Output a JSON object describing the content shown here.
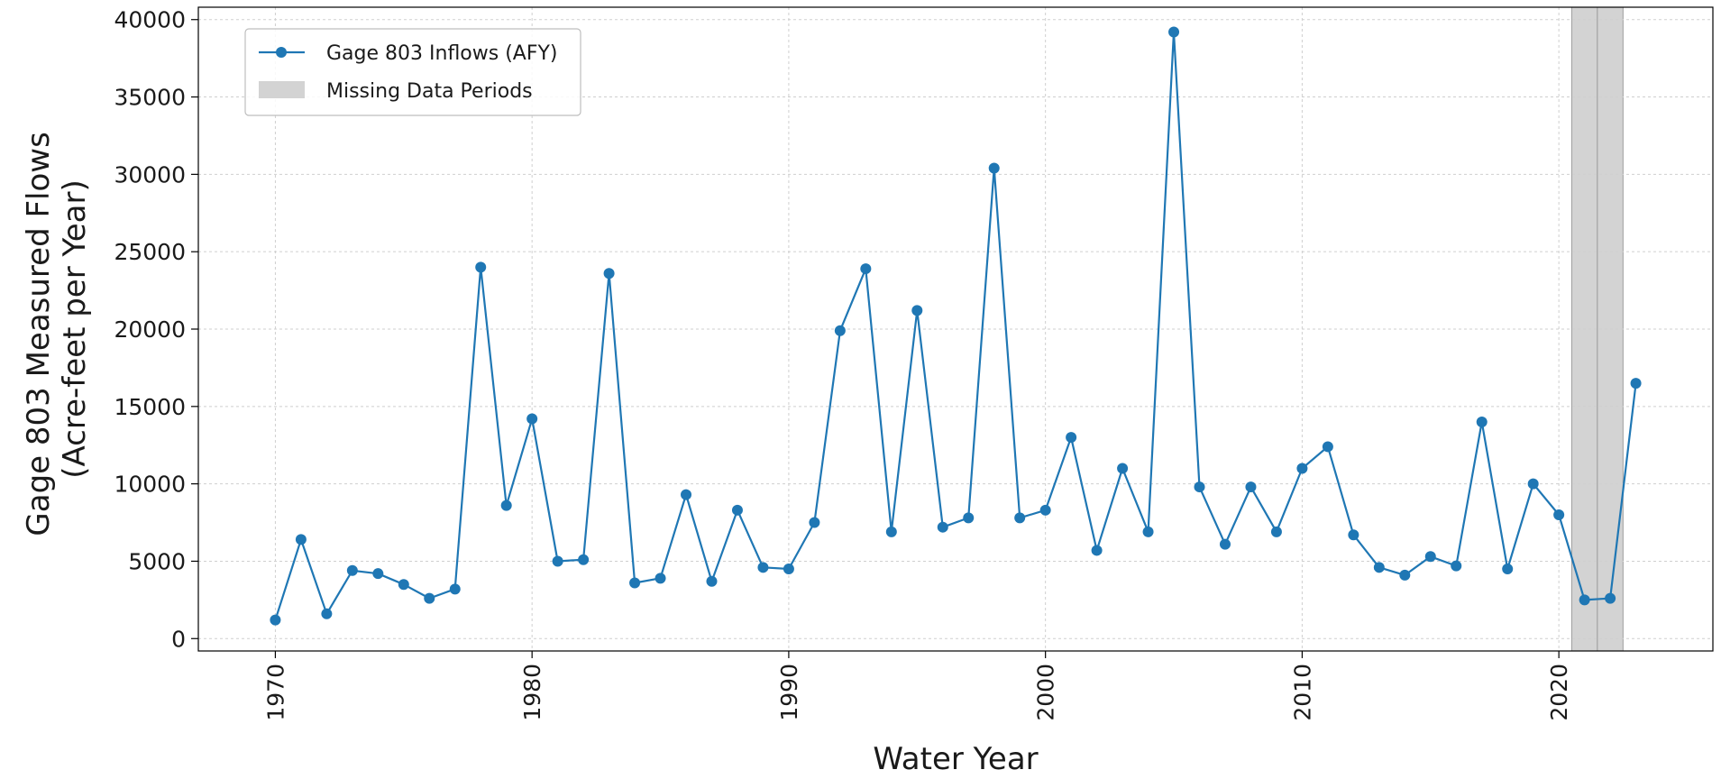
{
  "chart_data": {
    "type": "line",
    "title": "",
    "xlabel": "Water Year",
    "ylabel_lines": [
      "Gage 803 Measured Flows",
      "(Acre-feet per Year)"
    ],
    "xlim": [
      1967,
      2026
    ],
    "ylim": [
      -800,
      40800
    ],
    "x_ticks": [
      1970,
      1980,
      1990,
      2000,
      2010,
      2020
    ],
    "y_ticks": [
      0,
      5000,
      10000,
      15000,
      20000,
      25000,
      30000,
      35000,
      40000
    ],
    "grid": true,
    "legend_position": "top-left",
    "series": [
      {
        "name": "Gage 803 Inflows (AFY)",
        "color": "#1f77b4",
        "marker": "circle",
        "x": [
          1970,
          1971,
          1972,
          1973,
          1974,
          1975,
          1976,
          1977,
          1978,
          1979,
          1980,
          1981,
          1982,
          1983,
          1984,
          1985,
          1986,
          1987,
          1988,
          1989,
          1990,
          1991,
          1992,
          1993,
          1994,
          1995,
          1996,
          1997,
          1998,
          1999,
          2000,
          2001,
          2002,
          2003,
          2004,
          2005,
          2006,
          2007,
          2008,
          2009,
          2010,
          2011,
          2012,
          2013,
          2014,
          2015,
          2016,
          2017,
          2018,
          2019,
          2020,
          2021,
          2022,
          2023
        ],
        "y": [
          1200,
          6400,
          1600,
          4400,
          4200,
          3500,
          2600,
          3200,
          24000,
          8600,
          14200,
          5000,
          5100,
          23600,
          3600,
          3900,
          9300,
          3700,
          8300,
          4600,
          4500,
          7500,
          19900,
          23900,
          6900,
          21200,
          7200,
          7800,
          30400,
          7800,
          8300,
          13000,
          5700,
          11000,
          6900,
          39200,
          9800,
          6100,
          9800,
          6900,
          11000,
          12400,
          6700,
          4600,
          4100,
          5300,
          4700,
          14000,
          4500,
          10000,
          8000,
          2500,
          2600,
          16500
        ]
      }
    ],
    "shaded_regions": [
      {
        "name": "Missing Data Periods",
        "color": "#d3d3d3",
        "x_ranges": [
          [
            2020.5,
            2021.5
          ],
          [
            2021.5,
            2022.5
          ]
        ]
      }
    ]
  }
}
